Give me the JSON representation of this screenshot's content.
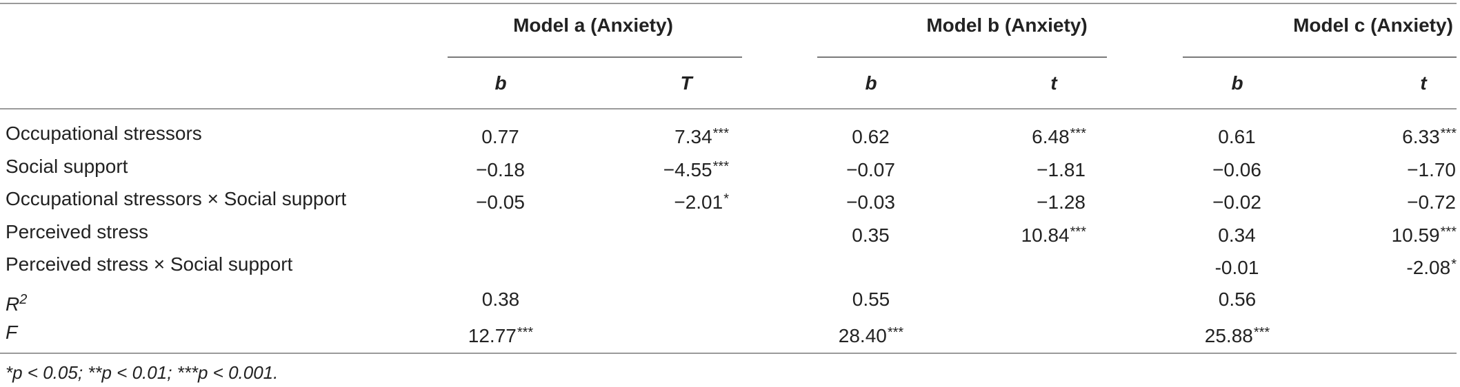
{
  "header": {
    "models": [
      "Model a (Anxiety)",
      "Model b (Anxiety)",
      "Model c (Anxiety)"
    ],
    "subheaders": [
      "b",
      "T",
      "b",
      "t",
      "b",
      "t"
    ]
  },
  "rows": [
    {
      "label": "Occupational stressors",
      "cells": [
        {
          "v": "0.77",
          "s": ""
        },
        {
          "v": "7.34",
          "s": "***"
        },
        {
          "v": "0.62",
          "s": ""
        },
        {
          "v": "6.48",
          "s": "***"
        },
        {
          "v": "0.61",
          "s": ""
        },
        {
          "v": "6.33",
          "s": "***"
        }
      ]
    },
    {
      "label": "Social support",
      "cells": [
        {
          "v": "−0.18",
          "s": ""
        },
        {
          "v": "−4.55",
          "s": "***"
        },
        {
          "v": "−0.07",
          "s": ""
        },
        {
          "v": "−1.81",
          "s": ""
        },
        {
          "v": "−0.06",
          "s": ""
        },
        {
          "v": "−1.70",
          "s": ""
        }
      ]
    },
    {
      "label": "Occupational stressors × Social support",
      "cells": [
        {
          "v": "−0.05",
          "s": ""
        },
        {
          "v": "−2.01",
          "s": "*"
        },
        {
          "v": "−0.03",
          "s": ""
        },
        {
          "v": "−1.28",
          "s": ""
        },
        {
          "v": "−0.02",
          "s": ""
        },
        {
          "v": "−0.72",
          "s": ""
        }
      ]
    },
    {
      "label": "Perceived stress",
      "cells": [
        {
          "v": "",
          "s": ""
        },
        {
          "v": "",
          "s": ""
        },
        {
          "v": "0.35",
          "s": ""
        },
        {
          "v": "10.84",
          "s": "***"
        },
        {
          "v": "0.34",
          "s": ""
        },
        {
          "v": "10.59",
          "s": "***"
        }
      ]
    },
    {
      "label": "Perceived stress × Social support",
      "cells": [
        {
          "v": "",
          "s": ""
        },
        {
          "v": "",
          "s": ""
        },
        {
          "v": "",
          "s": ""
        },
        {
          "v": "",
          "s": ""
        },
        {
          "v": "-0.01",
          "s": ""
        },
        {
          "v": "-2.08",
          "s": "*"
        }
      ]
    }
  ],
  "r2_row": {
    "label_main": "R",
    "label_sup": "2",
    "values": [
      "0.38",
      "0.55",
      "0.56"
    ]
  },
  "f_row": {
    "label": "F",
    "values": [
      {
        "v": "12.77",
        "s": "***"
      },
      {
        "v": "28.40",
        "s": "***"
      },
      {
        "v": "25.88",
        "s": "***"
      }
    ]
  },
  "footnote": "*p < 0.05; **p < 0.01; ***p < 0.001."
}
